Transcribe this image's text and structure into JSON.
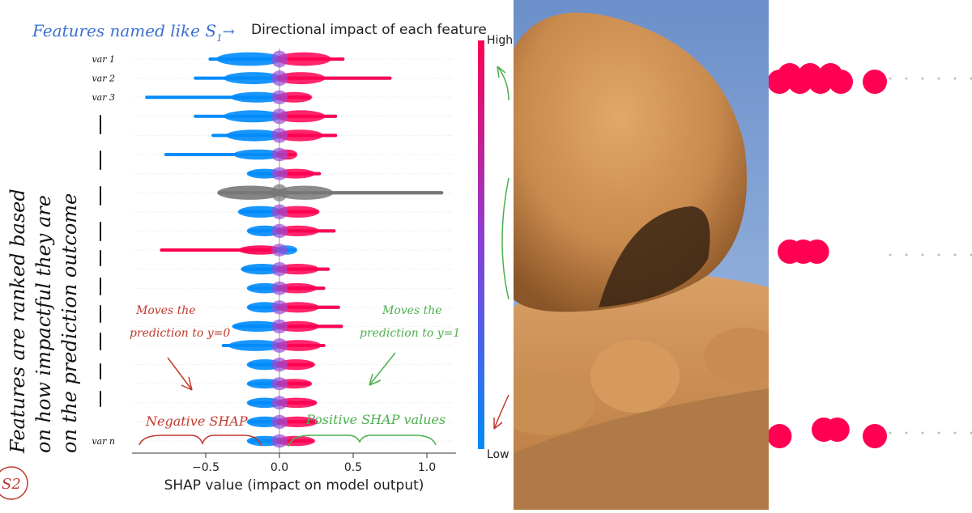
{
  "annotations": {
    "top_note": "Features named like S",
    "top_note_sub": "1",
    "top_note_arrow": "→",
    "side_note_line1": "Features are ranked based",
    "side_note_line2": "on how impactful they are",
    "side_note_line3": "on the prediction outcome",
    "left_note_line1": "Moves the",
    "left_note_line2": "prediction to y=0",
    "right_note_line1": "Moves the",
    "right_note_line2": "prediction to y=1",
    "neg_label": "Negative SHAP",
    "pos_label": "Positive SHAP values",
    "badge": "S2"
  },
  "chart_data": {
    "type": "scatter",
    "subtype": "shap-beeswarm",
    "title": "Directional impact of each feature",
    "xlabel": "SHAP value (impact on model output)",
    "ylabel": "",
    "xlim": [
      -1.0,
      1.2
    ],
    "xticks": [
      -0.5,
      0.0,
      0.5,
      1.0
    ],
    "xtick_labels": [
      "−0.5",
      "0.0",
      "0.5",
      "1.0"
    ],
    "grid": false,
    "colorbar": {
      "high_label": "High",
      "low_label": "Low",
      "high_color": "#ff0052",
      "low_color": "#008bfb"
    },
    "feature_labels": [
      "var 1",
      "var 2",
      "var 3",
      "var n"
    ],
    "features": [
      {
        "label": "var 1",
        "min": -0.47,
        "max": 0.43,
        "width": 0.9,
        "pos_color": "high",
        "neg_color": "low"
      },
      {
        "label": "var 2",
        "min": -0.57,
        "max": 0.75,
        "width": 0.75,
        "pos_color": "high",
        "neg_color": "low"
      },
      {
        "label": "var 3",
        "min": -0.9,
        "max": 0.2,
        "width": 0.6,
        "pos_color": "high",
        "neg_color": "low"
      },
      {
        "label": "",
        "min": -0.57,
        "max": 0.38,
        "width": 0.75,
        "pos_color": "high",
        "neg_color": "low"
      },
      {
        "label": "",
        "min": -0.45,
        "max": 0.38,
        "width": 0.7,
        "pos_color": "high",
        "neg_color": "low"
      },
      {
        "label": "",
        "min": -0.77,
        "max": 0.1,
        "width": 0.55,
        "pos_color": "high",
        "neg_color": "low"
      },
      {
        "label": "",
        "min": -0.2,
        "max": 0.27,
        "width": 0.5,
        "pos_color": "high",
        "neg_color": "low"
      },
      {
        "label": "",
        "min": -0.4,
        "max": 1.1,
        "width": 0.95,
        "pos_color": "gray",
        "neg_color": "gray"
      },
      {
        "label": "",
        "min": -0.26,
        "max": 0.25,
        "width": 0.7,
        "pos_color": "high",
        "neg_color": "low"
      },
      {
        "label": "",
        "min": -0.2,
        "max": 0.37,
        "width": 0.6,
        "pos_color": "high",
        "neg_color": "low"
      },
      {
        "label": "",
        "min": -0.8,
        "max": 0.1,
        "width": 0.45,
        "pos_color": "low",
        "neg_color": "high"
      },
      {
        "label": "",
        "min": -0.24,
        "max": 0.33,
        "width": 0.6,
        "pos_color": "high",
        "neg_color": "low"
      },
      {
        "label": "",
        "min": -0.2,
        "max": 0.3,
        "width": 0.55,
        "pos_color": "high",
        "neg_color": "low"
      },
      {
        "label": "",
        "min": -0.2,
        "max": 0.4,
        "width": 0.6,
        "pos_color": "high",
        "neg_color": "low"
      },
      {
        "label": "",
        "min": -0.3,
        "max": 0.42,
        "width": 0.6,
        "pos_color": "high",
        "neg_color": "low"
      },
      {
        "label": "",
        "min": -0.38,
        "max": 0.3,
        "width": 0.65,
        "pos_color": "high",
        "neg_color": "low"
      },
      {
        "label": "",
        "min": -0.2,
        "max": 0.22,
        "width": 0.6,
        "pos_color": "high",
        "neg_color": "low"
      },
      {
        "label": "",
        "min": -0.2,
        "max": 0.2,
        "width": 0.5,
        "pos_color": "high",
        "neg_color": "low"
      },
      {
        "label": "",
        "min": -0.2,
        "max": 0.24,
        "width": 0.55,
        "pos_color": "high",
        "neg_color": "low"
      },
      {
        "label": "",
        "min": -0.2,
        "max": 0.24,
        "width": 0.6,
        "pos_color": "high",
        "neg_color": "low"
      },
      {
        "label": "var n",
        "min": -0.2,
        "max": 0.22,
        "width": 0.55,
        "pos_color": "high",
        "neg_color": "low"
      }
    ]
  },
  "zoom_panel": {
    "dot_color": "#ff0052",
    "rows": [
      {
        "dots": [
          0.02,
          0.05,
          0.08,
          0.11,
          0.14,
          0.17,
          0.2,
          0.3
        ]
      },
      {
        "dots": [
          0.05,
          0.09,
          0.13
        ]
      },
      {
        "dots": [
          0.02,
          0.15,
          0.19,
          0.3
        ]
      }
    ]
  }
}
